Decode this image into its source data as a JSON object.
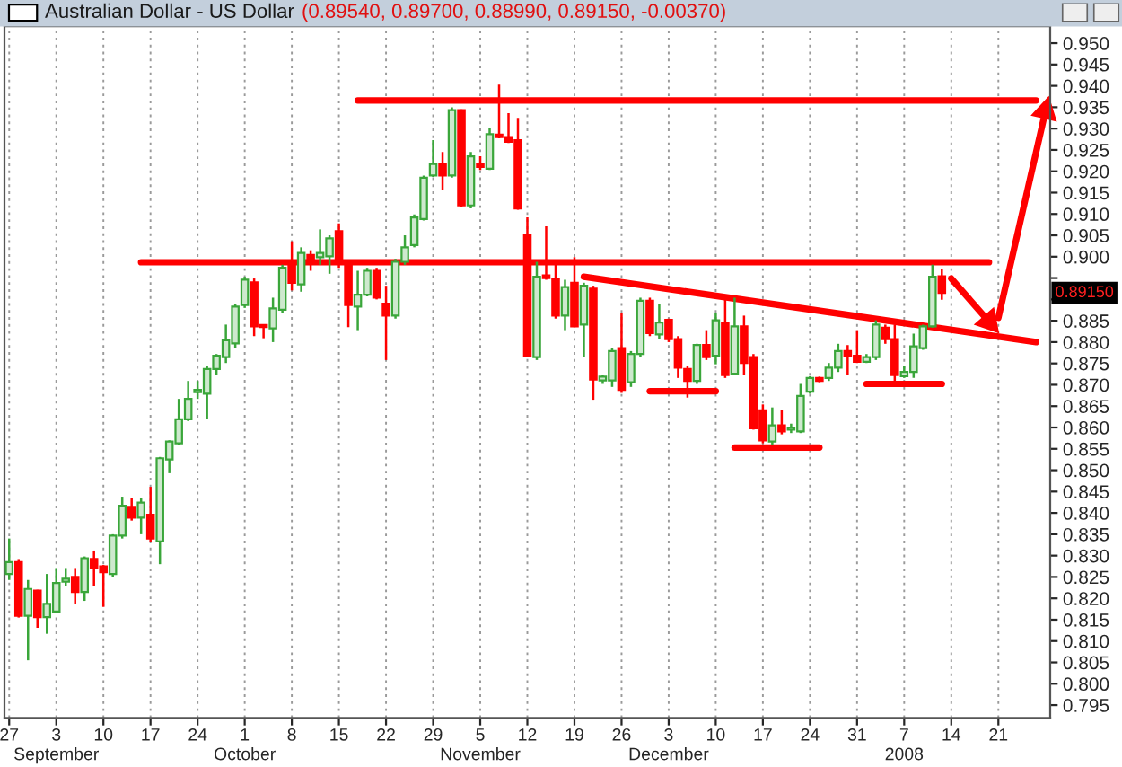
{
  "chart_data": {
    "type": "candlestick",
    "title": "Australian Dollar - US Dollar",
    "subtitle": "(0.89540, 0.89700, 0.88990, 0.89150, -0.00370)",
    "categories": [
      "27",
      null,
      null,
      null,
      null,
      "3\nSeptember",
      null,
      null,
      null,
      null,
      "10",
      null,
      null,
      null,
      null,
      "17",
      null,
      null,
      null,
      null,
      "24",
      null,
      null,
      null,
      null,
      "1\nOctober",
      null,
      null,
      null,
      null,
      "8",
      null,
      null,
      null,
      null,
      "15",
      null,
      null,
      null,
      null,
      "22",
      null,
      null,
      null,
      null,
      "29",
      null,
      null,
      null,
      null,
      "5\nNovember",
      null,
      null,
      null,
      null,
      "12",
      null,
      null,
      null,
      null,
      "19",
      null,
      null,
      null,
      null,
      "26",
      null,
      null,
      null,
      null,
      "3\nDecember",
      null,
      null,
      null,
      null,
      "10",
      null,
      null,
      null,
      null,
      "17",
      null,
      null,
      null,
      null,
      "24",
      null,
      null,
      null,
      null,
      "31",
      null,
      null,
      null,
      null,
      "7\n2008",
      null,
      null,
      null,
      null,
      "14",
      null,
      null,
      null,
      null,
      "21",
      null,
      null,
      null,
      null,
      null
    ],
    "ohlc": [
      [
        0.8257,
        0.834,
        0.8243,
        0.8285
      ],
      [
        0.8285,
        0.8292,
        0.8155,
        0.8159
      ],
      [
        0.8159,
        0.8243,
        0.8055,
        0.8222
      ],
      [
        0.8218,
        0.822,
        0.8131,
        0.8156
      ],
      [
        0.8156,
        0.8257,
        0.8117,
        0.8187
      ],
      [
        0.8169,
        0.8271,
        0.8166,
        0.8236
      ],
      [
        0.8239,
        0.8271,
        0.8229,
        0.8246
      ],
      [
        0.825,
        0.8271,
        0.8187,
        0.8215
      ],
      [
        0.8215,
        0.8298,
        0.8194,
        0.8294
      ],
      [
        0.8292,
        0.8312,
        0.8229,
        0.8271
      ],
      [
        0.8275,
        0.8278,
        0.818,
        0.8261
      ],
      [
        0.8257,
        0.835,
        0.825,
        0.8347
      ],
      [
        0.8347,
        0.8438,
        0.834,
        0.8417
      ],
      [
        0.8414,
        0.8434,
        0.8382,
        0.8389
      ],
      [
        0.8389,
        0.8434,
        0.835,
        0.8424
      ],
      [
        0.8396,
        0.8461,
        0.8333,
        0.834
      ],
      [
        0.8333,
        0.8531,
        0.828,
        0.8528
      ],
      [
        0.8525,
        0.857,
        0.8493,
        0.8567
      ],
      [
        0.8563,
        0.8667,
        0.856,
        0.8619
      ],
      [
        0.8619,
        0.8709,
        0.8615,
        0.8667
      ],
      [
        0.8683,
        0.8709,
        0.8667,
        0.8688
      ],
      [
        0.8679,
        0.8744,
        0.8619,
        0.8737
      ],
      [
        0.8737,
        0.8772,
        0.8723,
        0.8768
      ],
      [
        0.8765,
        0.8841,
        0.8751,
        0.8804
      ],
      [
        0.8797,
        0.889,
        0.8786,
        0.8883
      ],
      [
        0.8887,
        0.8953,
        0.888,
        0.8946
      ],
      [
        0.894,
        0.8949,
        0.8814,
        0.8837
      ],
      [
        0.884,
        0.8841,
        0.8809,
        0.8835
      ],
      [
        0.8832,
        0.8904,
        0.88,
        0.8879
      ],
      [
        0.8876,
        0.8981,
        0.8869,
        0.8974
      ],
      [
        0.8988,
        0.9036,
        0.8921,
        0.8939
      ],
      [
        0.8935,
        0.9022,
        0.8918,
        0.9009
      ],
      [
        0.9004,
        0.9015,
        0.8967,
        0.8988
      ],
      [
        0.8999,
        0.9064,
        0.8981,
        0.9009
      ],
      [
        0.9001,
        0.905,
        0.896,
        0.9043
      ],
      [
        0.906,
        0.9078,
        0.8974,
        0.8988
      ],
      [
        0.8981,
        0.8988,
        0.8835,
        0.8887
      ],
      [
        0.8883,
        0.8967,
        0.8828,
        0.8911
      ],
      [
        0.8911,
        0.8974,
        0.8907,
        0.8967
      ],
      [
        0.8967,
        0.8974,
        0.89,
        0.8904
      ],
      [
        0.889,
        0.8932,
        0.8758,
        0.8862
      ],
      [
        0.8862,
        0.8995,
        0.8855,
        0.8988
      ],
      [
        0.8988,
        0.905,
        0.8981,
        0.9022
      ],
      [
        0.9027,
        0.9099,
        0.9022,
        0.9092
      ],
      [
        0.9088,
        0.919,
        0.9085,
        0.9185
      ],
      [
        0.919,
        0.9273,
        0.9187,
        0.9217
      ],
      [
        0.9217,
        0.9245,
        0.9155,
        0.919
      ],
      [
        0.919,
        0.935,
        0.9185,
        0.9343
      ],
      [
        0.9343,
        0.9345,
        0.9116,
        0.912
      ],
      [
        0.912,
        0.9245,
        0.9113,
        0.9235
      ],
      [
        0.9217,
        0.9235,
        0.9203,
        0.921
      ],
      [
        0.9206,
        0.9301,
        0.9203,
        0.9287
      ],
      [
        0.9286,
        0.9403,
        0.9277,
        0.928
      ],
      [
        0.928,
        0.9336,
        0.9266,
        0.9269
      ],
      [
        0.9273,
        0.9325,
        0.911,
        0.9113
      ],
      [
        0.905,
        0.9092,
        0.8765,
        0.8768
      ],
      [
        0.8765,
        0.8988,
        0.8758,
        0.8953
      ],
      [
        0.8956,
        0.9071,
        0.8946,
        0.895
      ],
      [
        0.8949,
        0.8981,
        0.8855,
        0.8862
      ],
      [
        0.8862,
        0.8946,
        0.8828,
        0.8929
      ],
      [
        0.8939,
        0.8999,
        0.8835,
        0.8837
      ],
      [
        0.8841,
        0.8939,
        0.8765,
        0.8932
      ],
      [
        0.8925,
        0.8932,
        0.8665,
        0.8712
      ],
      [
        0.871,
        0.8723,
        0.8702,
        0.8719
      ],
      [
        0.871,
        0.8786,
        0.8695,
        0.8779
      ],
      [
        0.8786,
        0.8869,
        0.8681,
        0.8688
      ],
      [
        0.8706,
        0.8779,
        0.8695,
        0.8772
      ],
      [
        0.8772,
        0.8904,
        0.8765,
        0.8897
      ],
      [
        0.8897,
        0.8904,
        0.8814,
        0.8821
      ],
      [
        0.8818,
        0.889,
        0.8807,
        0.8846
      ],
      [
        0.8852,
        0.8855,
        0.88,
        0.8807
      ],
      [
        0.8807,
        0.8814,
        0.8716,
        0.874
      ],
      [
        0.8737,
        0.8744,
        0.867,
        0.8709
      ],
      [
        0.8709,
        0.8796,
        0.8702,
        0.8793
      ],
      [
        0.8793,
        0.8828,
        0.8758,
        0.8765
      ],
      [
        0.8768,
        0.8869,
        0.8748,
        0.8851
      ],
      [
        0.8845,
        0.8904,
        0.8716,
        0.8723
      ],
      [
        0.8726,
        0.8904,
        0.8723,
        0.8837
      ],
      [
        0.8837,
        0.8862,
        0.8723,
        0.8751
      ],
      [
        0.8765,
        0.8772,
        0.8595,
        0.8598
      ],
      [
        0.864,
        0.8654,
        0.8563,
        0.857
      ],
      [
        0.8567,
        0.8647,
        0.8559,
        0.8605
      ],
      [
        0.8605,
        0.8642,
        0.8584,
        0.8591
      ],
      [
        0.8595,
        0.8609,
        0.8587,
        0.86
      ],
      [
        0.8591,
        0.8702,
        0.8587,
        0.8674
      ],
      [
        0.8684,
        0.872,
        0.8679,
        0.8716
      ],
      [
        0.8716,
        0.8719,
        0.8706,
        0.8709
      ],
      [
        0.8716,
        0.8751,
        0.8709,
        0.874
      ],
      [
        0.874,
        0.8796,
        0.873,
        0.8779
      ],
      [
        0.8779,
        0.8793,
        0.8723,
        0.8768
      ],
      [
        0.8768,
        0.8828,
        0.8751,
        0.8754
      ],
      [
        0.8754,
        0.8772,
        0.8751,
        0.8765
      ],
      [
        0.8765,
        0.8851,
        0.8758,
        0.8841
      ],
      [
        0.8834,
        0.8841,
        0.8796,
        0.8807
      ],
      [
        0.8807,
        0.8841,
        0.8709,
        0.8723
      ],
      [
        0.872,
        0.8744,
        0.8716,
        0.873
      ],
      [
        0.873,
        0.882,
        0.8716,
        0.879
      ],
      [
        0.8786,
        0.8841,
        0.8782,
        0.8837
      ],
      [
        0.8837,
        0.8981,
        0.8834,
        0.8953
      ],
      [
        0.8954,
        0.897,
        0.8899,
        0.8915
      ],
      null,
      null,
      null,
      null,
      null,
      null,
      null,
      null,
      null,
      null,
      null
    ],
    "colors": [
      "#3aa63a",
      "#ff0000",
      "#3aa63a",
      "#ff0000",
      "#3aa63a",
      "#3aa63a",
      "#3aa63a",
      "#ff0000",
      "#3aa63a",
      "#ff0000",
      "#ff0000",
      "#3aa63a",
      "#3aa63a",
      "#ff0000",
      "#3aa63a",
      "#ff0000",
      "#3aa63a",
      "#3aa63a",
      "#3aa63a",
      "#3aa63a",
      "#3aa63a",
      "#3aa63a",
      "#3aa63a",
      "#3aa63a",
      "#3aa63a",
      "#3aa63a",
      "#ff0000",
      "#ff0000",
      "#3aa63a",
      "#3aa63a",
      "#ff0000",
      "#3aa63a",
      "#ff0000",
      "#3aa63a",
      "#3aa63a",
      "#ff0000",
      "#ff0000",
      "#3aa63a",
      "#3aa63a",
      "#ff0000",
      "#ff0000",
      "#3aa63a",
      "#3aa63a",
      "#3aa63a",
      "#3aa63a",
      "#3aa63a",
      "#ff0000",
      "#3aa63a",
      "#ff0000",
      "#3aa63a",
      "#ff0000",
      "#3aa63a",
      "#ff0000",
      "#ff0000",
      "#ff0000",
      "#ff0000",
      "#3aa63a",
      "#ff0000",
      "#ff0000",
      "#3aa63a",
      "#ff0000",
      "#3aa63a",
      "#ff0000",
      "#3aa63a",
      "#3aa63a",
      "#ff0000",
      "#3aa63a",
      "#3aa63a",
      "#ff0000",
      "#3aa63a",
      "#ff0000",
      "#ff0000",
      "#ff0000",
      "#3aa63a",
      "#ff0000",
      "#3aa63a",
      "#ff0000",
      "#3aa63a",
      "#ff0000",
      "#ff0000",
      "#ff0000",
      "#3aa63a",
      "#ff0000",
      "#3aa63a",
      "#3aa63a",
      "#3aa63a",
      "#ff0000",
      "#3aa63a",
      "#3aa63a",
      "#ff0000",
      "#ff0000",
      "#3aa63a",
      "#3aa63a",
      "#ff0000",
      "#ff0000",
      "#3aa63a",
      "#3aa63a",
      "#3aa63a",
      "#3aa63a",
      "#ff0000",
      null,
      null,
      null,
      null,
      null,
      null,
      null,
      null,
      null,
      null,
      null
    ],
    "series": [
      {
        "type": "line",
        "color": "#ff0000",
        "values": [
          null,
          null,
          null,
          null,
          null,
          null,
          null,
          null,
          null,
          null,
          null,
          null,
          null,
          null,
          null,
          null,
          null,
          null,
          null,
          null,
          null,
          null,
          null,
          null,
          null,
          null,
          null,
          null,
          null,
          null,
          null,
          null,
          null,
          null,
          null,
          null,
          null,
          0.9366,
          null,
          null,
          null,
          null,
          null,
          null,
          null,
          null,
          null,
          null,
          null,
          null,
          null,
          null,
          null,
          null,
          null,
          null,
          null,
          null,
          null,
          null,
          null,
          null,
          null,
          null,
          null,
          null,
          null,
          null,
          null,
          null,
          null,
          null,
          null,
          null,
          null,
          null,
          null,
          null,
          null,
          null,
          null,
          null,
          null,
          null,
          null,
          null,
          null,
          null,
          null,
          null,
          null,
          null,
          null,
          null,
          null,
          null,
          null,
          null,
          null,
          null,
          null,
          null,
          null,
          null,
          null,
          null,
          null,
          null,
          null,
          0.9366,
          null
        ]
      },
      {
        "type": "line",
        "color": "#ff0000",
        "values": [
          null,
          null,
          null,
          null,
          null,
          null,
          null,
          null,
          null,
          null,
          null,
          null,
          null,
          null,
          0.8987,
          null,
          null,
          null,
          null,
          null,
          null,
          null,
          null,
          null,
          null,
          null,
          null,
          null,
          null,
          null,
          null,
          null,
          null,
          null,
          null,
          null,
          null,
          null,
          null,
          null,
          null,
          null,
          null,
          null,
          null,
          null,
          null,
          null,
          null,
          null,
          null,
          null,
          null,
          null,
          null,
          null,
          null,
          null,
          null,
          null,
          null,
          null,
          null,
          null,
          null,
          null,
          null,
          null,
          null,
          null,
          null,
          null,
          null,
          null,
          null,
          null,
          null,
          null,
          null,
          null,
          null,
          null,
          null,
          null,
          null,
          null,
          null,
          null,
          null,
          null,
          null,
          null,
          null,
          null,
          null,
          null,
          null,
          null,
          null,
          null,
          null,
          null,
          null,
          null,
          0.8987,
          null,
          null,
          null,
          null,
          null,
          null
        ]
      },
      {
        "type": "line",
        "color": "#ff0000",
        "values": [
          null,
          null,
          null,
          null,
          null,
          null,
          null,
          null,
          null,
          null,
          null,
          null,
          null,
          null,
          null,
          null,
          null,
          null,
          null,
          null,
          null,
          null,
          null,
          null,
          null,
          null,
          null,
          null,
          null,
          null,
          null,
          null,
          null,
          null,
          null,
          null,
          null,
          null,
          null,
          null,
          null,
          null,
          null,
          null,
          null,
          null,
          null,
          null,
          null,
          null,
          null,
          null,
          null,
          null,
          null,
          null,
          null,
          null,
          null,
          null,
          null,
          0.8953,
          null,
          null,
          null,
          null,
          null,
          null,
          null,
          null,
          null,
          null,
          null,
          null,
          null,
          null,
          null,
          null,
          null,
          null,
          null,
          null,
          null,
          null,
          null,
          null,
          null,
          null,
          null,
          null,
          null,
          null,
          null,
          null,
          null,
          null,
          null,
          null,
          null,
          null,
          null,
          null,
          null,
          null,
          null,
          null,
          null,
          null,
          null,
          0.88,
          null
        ]
      },
      {
        "type": "line",
        "color": "#ff0000",
        "values": [
          null,
          null,
          null,
          null,
          null,
          null,
          null,
          null,
          null,
          null,
          null,
          null,
          null,
          null,
          null,
          null,
          null,
          null,
          null,
          null,
          null,
          null,
          null,
          null,
          null,
          null,
          null,
          null,
          null,
          null,
          null,
          null,
          null,
          null,
          null,
          null,
          null,
          null,
          null,
          null,
          null,
          null,
          null,
          null,
          null,
          null,
          null,
          null,
          null,
          null,
          null,
          null,
          null,
          null,
          null,
          null,
          null,
          null,
          null,
          null,
          null,
          null,
          null,
          null,
          null,
          null,
          null,
          null,
          0.8685,
          null,
          null,
          null,
          null,
          null,
          null,
          0.8685,
          null,
          null,
          null,
          null,
          null,
          null,
          null,
          null,
          null,
          null,
          null,
          null,
          null,
          null,
          null,
          null,
          null,
          null,
          null,
          null,
          null,
          null,
          null,
          null,
          null,
          null,
          null,
          null,
          null,
          null,
          null,
          null,
          null,
          null,
          null
        ]
      },
      {
        "type": "line",
        "color": "#ff0000",
        "values": [
          null,
          null,
          null,
          null,
          null,
          null,
          null,
          null,
          null,
          null,
          null,
          null,
          null,
          null,
          null,
          null,
          null,
          null,
          null,
          null,
          null,
          null,
          null,
          null,
          null,
          null,
          null,
          null,
          null,
          null,
          null,
          null,
          null,
          null,
          null,
          null,
          null,
          null,
          null,
          null,
          null,
          null,
          null,
          null,
          null,
          null,
          null,
          null,
          null,
          null,
          null,
          null,
          null,
          null,
          null,
          null,
          null,
          null,
          null,
          null,
          null,
          null,
          null,
          null,
          null,
          null,
          null,
          null,
          null,
          null,
          null,
          null,
          null,
          null,
          null,
          null,
          null,
          0.8553,
          null,
          null,
          null,
          null,
          null,
          null,
          null,
          null,
          0.8553,
          null,
          null,
          null,
          null,
          null,
          null,
          null,
          null,
          null,
          null,
          null,
          null,
          null,
          null,
          null,
          null,
          null,
          null,
          null,
          null,
          null,
          null,
          null,
          null
        ]
      },
      {
        "type": "line",
        "color": "#ff0000",
        "values": [
          null,
          null,
          null,
          null,
          null,
          null,
          null,
          null,
          null,
          null,
          null,
          null,
          null,
          null,
          null,
          null,
          null,
          null,
          null,
          null,
          null,
          null,
          null,
          null,
          null,
          null,
          null,
          null,
          null,
          null,
          null,
          null,
          null,
          null,
          null,
          null,
          null,
          null,
          null,
          null,
          null,
          null,
          null,
          null,
          null,
          null,
          null,
          null,
          null,
          null,
          null,
          null,
          null,
          null,
          null,
          null,
          null,
          null,
          null,
          null,
          null,
          null,
          null,
          null,
          null,
          null,
          null,
          null,
          null,
          null,
          null,
          null,
          null,
          null,
          null,
          null,
          null,
          null,
          null,
          null,
          null,
          null,
          null,
          null,
          null,
          null,
          null,
          null,
          null,
          null,
          null,
          0.8702,
          null,
          null,
          null,
          null,
          null,
          null,
          null,
          0.8702,
          null,
          null,
          null,
          null,
          null,
          null,
          null,
          null,
          null,
          null,
          null
        ]
      },
      {
        "type": "line",
        "color": "#ff0000",
        "marker": "triangle",
        "values": [
          null,
          null,
          null,
          null,
          null,
          null,
          null,
          null,
          null,
          null,
          null,
          null,
          null,
          null,
          null,
          null,
          null,
          null,
          null,
          null,
          null,
          null,
          null,
          null,
          null,
          null,
          null,
          null,
          null,
          null,
          null,
          null,
          null,
          null,
          null,
          null,
          null,
          null,
          null,
          null,
          null,
          null,
          null,
          null,
          null,
          null,
          null,
          null,
          null,
          null,
          null,
          null,
          null,
          null,
          null,
          null,
          null,
          null,
          null,
          null,
          null,
          null,
          null,
          null,
          null,
          null,
          null,
          null,
          null,
          null,
          null,
          null,
          null,
          null,
          null,
          null,
          null,
          null,
          null,
          null,
          null,
          null,
          null,
          null,
          null,
          null,
          null,
          null,
          null,
          null,
          null,
          null,
          null,
          null,
          null,
          null,
          null,
          null,
          null,
          null,
          0.8949,
          null,
          null,
          null,
          0.8848,
          null,
          null,
          null,
          null,
          null,
          null
        ]
      },
      {
        "type": "line",
        "color": "#ff0000",
        "marker": "triangle",
        "values": [
          null,
          null,
          null,
          null,
          null,
          null,
          null,
          null,
          null,
          null,
          null,
          null,
          null,
          null,
          null,
          null,
          null,
          null,
          null,
          null,
          null,
          null,
          null,
          null,
          null,
          null,
          null,
          null,
          null,
          null,
          null,
          null,
          null,
          null,
          null,
          null,
          null,
          null,
          null,
          null,
          null,
          null,
          null,
          null,
          null,
          null,
          null,
          null,
          null,
          null,
          null,
          null,
          null,
          null,
          null,
          null,
          null,
          null,
          null,
          null,
          null,
          null,
          null,
          null,
          null,
          null,
          null,
          null,
          null,
          null,
          null,
          null,
          null,
          null,
          null,
          null,
          null,
          null,
          null,
          null,
          null,
          null,
          null,
          null,
          null,
          null,
          null,
          null,
          null,
          null,
          null,
          null,
          null,
          null,
          null,
          null,
          null,
          null,
          null,
          null,
          null,
          null,
          null,
          null,
          null,
          0.8857,
          null,
          null,
          null,
          null,
          0.9341
        ]
      }
    ],
    "ylim": [
      0.792,
      0.954
    ],
    "yticks": [
      {
        "value": 0.795,
        "label": "0.795"
      },
      {
        "value": 0.8,
        "label": "0.800"
      },
      {
        "value": 0.805,
        "label": "0.805"
      },
      {
        "value": 0.81,
        "label": "0.810"
      },
      {
        "value": 0.815,
        "label": "0.815"
      },
      {
        "value": 0.82,
        "label": "0.820"
      },
      {
        "value": 0.825,
        "label": "0.825"
      },
      {
        "value": 0.83,
        "label": "0.830"
      },
      {
        "value": 0.835,
        "label": "0.835"
      },
      {
        "value": 0.84,
        "label": "0.840"
      },
      {
        "value": 0.845,
        "label": "0.845"
      },
      {
        "value": 0.85,
        "label": "0.850"
      },
      {
        "value": 0.855,
        "label": "0.855"
      },
      {
        "value": 0.86,
        "label": "0.860"
      },
      {
        "value": 0.865,
        "label": "0.865"
      },
      {
        "value": 0.87,
        "label": "0.870"
      },
      {
        "value": 0.875,
        "label": "0.875"
      },
      {
        "value": 0.88,
        "label": "0.880"
      },
      {
        "value": 0.885,
        "label": "0.885"
      },
      {
        "value": 0.89,
        "label": null
      },
      {
        "value": 0.895,
        "label": null
      },
      {
        "value": 0.9,
        "label": "0.900"
      },
      {
        "value": 0.905,
        "label": "0.905"
      },
      {
        "value": 0.91,
        "label": "0.910"
      },
      {
        "value": 0.915,
        "label": "0.915"
      },
      {
        "value": 0.92,
        "label": "0.920"
      },
      {
        "value": 0.925,
        "label": "0.925"
      },
      {
        "value": 0.93,
        "label": "0.930"
      },
      {
        "value": 0.935,
        "label": "0.935"
      },
      {
        "value": 0.94,
        "label": "0.940"
      },
      {
        "value": 0.945,
        "label": "0.945"
      },
      {
        "value": 0.95,
        "label": "0.950"
      }
    ],
    "grid": "x",
    "annotations": [
      "0.89150"
    ]
  }
}
